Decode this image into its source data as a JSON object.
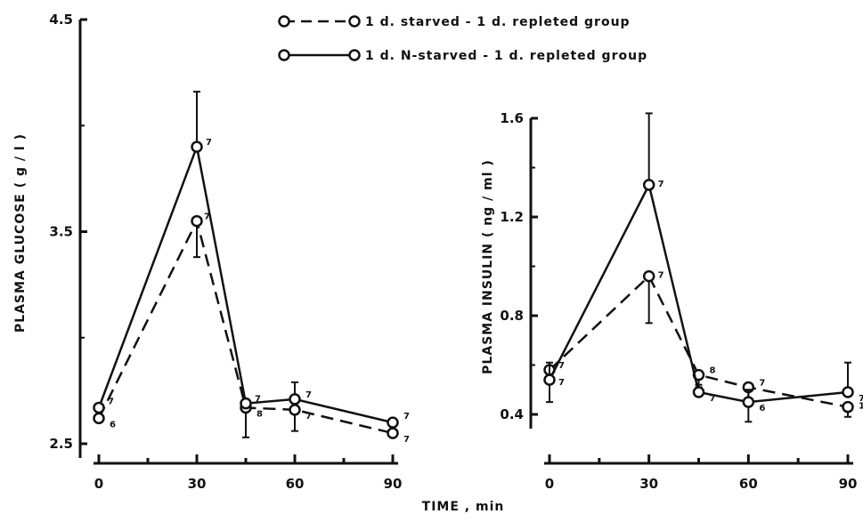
{
  "chart_data": [
    {
      "type": "line",
      "title": "",
      "xlabel": "TIME , min",
      "ylabel": "PLASMA GLUCOSE ( g / l )",
      "x": [
        0,
        30,
        45,
        60,
        90
      ],
      "x_ticks": [
        "0",
        "30",
        "60",
        "90"
      ],
      "y_ticks": [
        "2.5",
        "3.5",
        "4.5"
      ],
      "xlim": [
        0,
        90
      ],
      "ylim": [
        2.5,
        4.5
      ],
      "grid": false,
      "legend": "top-center",
      "series": [
        {
          "name": "1 d. starved - 1 d. repleted group",
          "style": "dashed",
          "values": [
            2.62,
            3.55,
            2.67,
            2.66,
            2.55
          ],
          "error": [
            0.0,
            0.17,
            0.14,
            0.1,
            0.0
          ],
          "n": [
            "6",
            "7",
            "8",
            "7",
            "7"
          ]
        },
        {
          "name": "1 d. N-starved - 1 d. repleted group",
          "style": "solid",
          "values": [
            2.67,
            3.9,
            2.69,
            2.71,
            2.6
          ],
          "error": [
            0.0,
            0.26,
            0.0,
            0.08,
            0.0
          ],
          "n": [
            "7",
            "7",
            "7",
            "7",
            "7"
          ]
        }
      ]
    },
    {
      "type": "line",
      "title": "",
      "xlabel": "TIME , min",
      "ylabel": "PLASMA INSULIN ( ng / ml )",
      "x": [
        0,
        30,
        45,
        60,
        90
      ],
      "x_ticks": [
        "0",
        "30",
        "60",
        "90"
      ],
      "y_ticks": [
        "0.4",
        "0.8",
        "1.2",
        "1.6"
      ],
      "xlim": [
        0,
        90
      ],
      "ylim": [
        0.4,
        1.6
      ],
      "grid": false,
      "legend": "top-center",
      "series": [
        {
          "name": "1 d. starved - 1 d. repleted group",
          "style": "dashed",
          "values": [
            0.58,
            0.96,
            0.56,
            0.51,
            0.43
          ],
          "error": [
            0.13,
            0.19,
            0.05,
            0.14,
            0.04
          ],
          "n": [
            "7",
            "7",
            "8",
            "7",
            "1"
          ]
        },
        {
          "name": "1 d. N-starved - 1 d. repleted group",
          "style": "solid",
          "values": [
            0.54,
            1.33,
            0.49,
            0.45,
            0.49
          ],
          "error": [
            0.07,
            0.29,
            0.03,
            0.05,
            0.12
          ],
          "n": [
            "7",
            "7",
            "7",
            "6",
            "7"
          ]
        }
      ]
    }
  ]
}
